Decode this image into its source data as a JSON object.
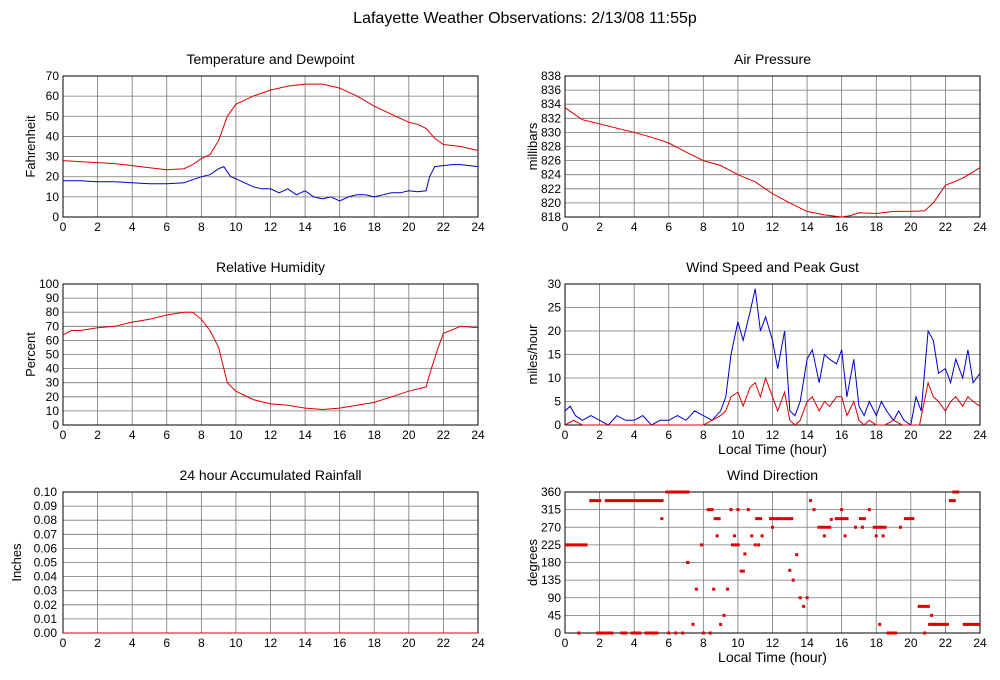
{
  "page_title": "Lafayette Weather Observations: 2/13/08 11:55p",
  "colors": {
    "red": "#dd0000",
    "blue": "#0000cc",
    "grid": "#777777"
  },
  "chart_data": [
    {
      "type": "line",
      "title": "Temperature and Dewpoint",
      "xlabel": "",
      "ylabel": "Fahrenheit",
      "xlim": [
        0,
        24
      ],
      "ylim": [
        0,
        70
      ],
      "xticks": [
        0,
        2,
        4,
        6,
        8,
        10,
        12,
        14,
        16,
        18,
        20,
        22,
        24
      ],
      "yticks": [
        0,
        10,
        20,
        30,
        40,
        50,
        60,
        70
      ],
      "grid": true,
      "series": [
        {
          "color": "#dd0000",
          "x": [
            0,
            1,
            2,
            3,
            4,
            5,
            6,
            7,
            7.5,
            8,
            8.5,
            9,
            9.5,
            10,
            10.5,
            11,
            12,
            13,
            14,
            15,
            16,
            17,
            18,
            19,
            20,
            20.5,
            21,
            21.5,
            22,
            23,
            24
          ],
          "y": [
            28,
            27.5,
            27,
            26.5,
            25.5,
            24.5,
            23.5,
            24,
            26,
            29,
            31,
            38,
            50,
            56,
            58,
            60,
            63,
            65,
            66,
            66,
            64,
            60,
            55,
            51,
            47,
            46,
            44,
            39,
            36,
            35,
            33
          ]
        },
        {
          "color": "#0000cc",
          "x": [
            0,
            1,
            2,
            3,
            4,
            5,
            6,
            7,
            7.5,
            8,
            8.5,
            9,
            9.3,
            9.7,
            10,
            10.5,
            11,
            11.5,
            12,
            12.5,
            13,
            13.5,
            14,
            14.5,
            15,
            15.5,
            16,
            16.5,
            17,
            17.5,
            18,
            18.5,
            19,
            19.5,
            20,
            20.5,
            21,
            21.2,
            21.5,
            22,
            22.5,
            23,
            23.5,
            24
          ],
          "y": [
            18,
            18,
            17.5,
            17.5,
            17,
            16.5,
            16.5,
            17,
            18.5,
            20,
            21,
            24,
            25,
            20,
            19,
            17,
            15,
            14,
            14,
            12,
            14,
            11,
            13,
            10,
            9,
            10,
            8,
            10,
            11,
            11,
            10,
            11,
            12,
            12,
            13,
            12.5,
            13,
            20,
            25,
            25.5,
            26,
            26,
            25.5,
            25
          ]
        }
      ]
    },
    {
      "type": "line",
      "title": "Air Pressure",
      "xlabel": "",
      "ylabel": "millibars",
      "xlim": [
        0,
        24
      ],
      "ylim": [
        818,
        838
      ],
      "xticks": [
        0,
        2,
        4,
        6,
        8,
        10,
        12,
        14,
        16,
        18,
        20,
        22,
        24
      ],
      "yticks": [
        818,
        820,
        822,
        824,
        826,
        828,
        830,
        832,
        834,
        836,
        838
      ],
      "grid": true,
      "series": [
        {
          "color": "#dd0000",
          "x": [
            0,
            1,
            2,
            3,
            4,
            5,
            6,
            7,
            8,
            9,
            10,
            11,
            12,
            13,
            14,
            15,
            16,
            16.5,
            17,
            18,
            19,
            20,
            20.8,
            21.3,
            22,
            23,
            24
          ],
          "y": [
            833.5,
            831.8,
            831.2,
            830.6,
            830,
            829.3,
            828.5,
            827.2,
            826,
            825.3,
            824,
            823,
            821.3,
            820,
            818.8,
            818.3,
            818,
            818.2,
            818.6,
            818.5,
            818.8,
            818.8,
            818.9,
            820,
            822.5,
            823.5,
            825
          ]
        }
      ]
    },
    {
      "type": "line",
      "title": "Relative Humidity",
      "xlabel": "",
      "ylabel": "Percent",
      "xlim": [
        0,
        24
      ],
      "ylim": [
        0,
        100
      ],
      "xticks": [
        0,
        2,
        4,
        6,
        8,
        10,
        12,
        14,
        16,
        18,
        20,
        22,
        24
      ],
      "yticks": [
        0,
        10,
        20,
        30,
        40,
        50,
        60,
        70,
        80,
        90,
        100
      ],
      "grid": true,
      "series": [
        {
          "color": "#dd0000",
          "x": [
            0,
            0.5,
            1,
            2,
            3,
            4,
            5,
            6,
            7,
            7.5,
            8,
            8.5,
            9,
            9.5,
            10,
            11,
            12,
            13,
            14,
            15,
            16,
            17,
            18,
            19,
            20,
            21,
            21.3,
            21.7,
            22,
            23,
            24
          ],
          "y": [
            64,
            67,
            67,
            69,
            70,
            73,
            75,
            78,
            80,
            80,
            75,
            67,
            55,
            30,
            24,
            18,
            15,
            14,
            12,
            11,
            12,
            14,
            16,
            20,
            24,
            27,
            40,
            55,
            65,
            70,
            69
          ]
        }
      ]
    },
    {
      "type": "line",
      "title": "Wind Speed and Peak Gust",
      "xlabel": "Local Time (hour)",
      "ylabel": "miles/hour",
      "xlim": [
        0,
        24
      ],
      "ylim": [
        0,
        30
      ],
      "xticks": [
        0,
        2,
        4,
        6,
        8,
        10,
        12,
        14,
        16,
        18,
        20,
        22,
        24
      ],
      "yticks": [
        0,
        5,
        10,
        15,
        20,
        25,
        30
      ],
      "grid": true,
      "series": [
        {
          "color": "#0000cc",
          "x": [
            0,
            0.3,
            0.6,
            1,
            1.5,
            2,
            2.5,
            3,
            3.5,
            4,
            4.5,
            5,
            5.5,
            6,
            6.5,
            7,
            7.5,
            8,
            8.5,
            9,
            9.3,
            9.6,
            10,
            10.3,
            10.7,
            11,
            11.3,
            11.6,
            12,
            12.3,
            12.7,
            13,
            13.3,
            13.6,
            14,
            14.3,
            14.7,
            15,
            15.3,
            15.7,
            16,
            16.3,
            16.7,
            17,
            17.3,
            17.6,
            18,
            18.3,
            18.6,
            19,
            19.3,
            19.6,
            20,
            20.3,
            20.6,
            21,
            21.3,
            21.6,
            22,
            22.3,
            22.6,
            23,
            23.3,
            23.6,
            24
          ],
          "y": [
            3,
            4,
            2,
            1,
            2,
            1,
            0,
            2,
            1,
            1,
            2,
            0,
            1,
            1,
            2,
            1,
            3,
            2,
            1,
            3,
            6,
            15,
            22,
            18,
            24,
            29,
            20,
            23,
            18,
            12,
            20,
            3,
            2,
            5,
            14,
            16,
            9,
            15,
            14,
            13,
            16,
            6,
            14,
            4,
            2,
            5,
            2,
            5,
            3,
            1,
            3,
            1,
            0,
            6,
            3,
            20,
            18,
            11,
            12,
            9,
            14,
            10,
            16,
            9,
            11
          ]
        },
        {
          "color": "#dd0000",
          "x": [
            0,
            0.5,
            1,
            1.5,
            2,
            3,
            4,
            5,
            6,
            7,
            8,
            8.5,
            9,
            9.3,
            9.6,
            10,
            10.3,
            10.7,
            11,
            11.3,
            11.6,
            12,
            12.3,
            12.7,
            13,
            13.3,
            13.6,
            14,
            14.3,
            14.7,
            15,
            15.3,
            15.7,
            16,
            16.3,
            16.7,
            17,
            17.3,
            17.6,
            18,
            18.5,
            19,
            19.5,
            20,
            20.5,
            21,
            21.3,
            21.6,
            22,
            22.3,
            22.6,
            23,
            23.3,
            23.6,
            24
          ],
          "y": [
            0,
            1,
            0,
            0,
            0,
            0,
            0,
            0,
            0,
            0,
            0,
            1,
            2,
            3,
            6,
            7,
            4,
            8,
            9,
            6,
            10,
            6,
            3,
            7,
            1,
            0,
            1,
            5,
            6,
            3,
            5,
            4,
            6,
            6,
            2,
            5,
            1,
            0,
            1,
            0,
            0,
            1,
            0,
            0,
            0,
            9,
            6,
            5,
            3,
            5,
            6,
            4,
            6,
            5,
            4
          ]
        }
      ]
    },
    {
      "type": "line",
      "title": "24 hour Accumulated Rainfall",
      "xlabel": "",
      "ylabel": "Inches",
      "xlim": [
        0,
        24
      ],
      "ylim": [
        0,
        0.1
      ],
      "xticks": [
        0,
        2,
        4,
        6,
        8,
        10,
        12,
        14,
        16,
        18,
        20,
        22,
        24
      ],
      "yticks": [
        "0.00",
        "0.01",
        "0.02",
        "0.03",
        "0.04",
        "0.05",
        "0.06",
        "0.07",
        "0.08",
        "0.09",
        "0.10"
      ],
      "grid": true,
      "series": [
        {
          "color": "#dd0000",
          "x": [
            0,
            24
          ],
          "y": [
            0,
            0
          ]
        }
      ]
    },
    {
      "type": "scatter",
      "title": "Wind Direction",
      "xlabel": "Local Time (hour)",
      "ylabel": "degrees",
      "xlim": [
        0,
        24
      ],
      "ylim": [
        0,
        360
      ],
      "xticks": [
        0,
        2,
        4,
        6,
        8,
        10,
        12,
        14,
        16,
        18,
        20,
        22,
        24
      ],
      "yticks": [
        0,
        45,
        90,
        135,
        180,
        225,
        270,
        315,
        360
      ],
      "grid": true,
      "series": [
        {
          "color": "#dd0000",
          "segments": [
            [
              0,
              1.3,
              225
            ],
            [
              1.4,
              2.1,
              338
            ],
            [
              2.3,
              5.7,
              338
            ],
            [
              5.8,
              7.2,
              360
            ],
            [
              7.0,
              7.2,
              180
            ],
            [
              7.8,
              8.0,
              225
            ],
            [
              8.2,
              8.6,
              315
            ],
            [
              8.6,
              9.0,
              292
            ],
            [
              9.6,
              10.1,
              225
            ],
            [
              10.1,
              10.4,
              158
            ],
            [
              11.0,
              11.4,
              292
            ],
            [
              11.8,
              12.6,
              292
            ],
            [
              12.6,
              13.2,
              292
            ],
            [
              14.6,
              15.4,
              270
            ],
            [
              15.6,
              16.4,
              292
            ],
            [
              17.0,
              17.4,
              292
            ],
            [
              17.8,
              18.6,
              270
            ],
            [
              19.6,
              20.2,
              292
            ],
            [
              20.4,
              21.1,
              68
            ],
            [
              21.0,
              22.2,
              22
            ],
            [
              22.2,
              22.6,
              338
            ],
            [
              22.4,
              22.8,
              360
            ],
            [
              23.0,
              24.0,
              22
            ],
            [
              1.8,
              2.8,
              0
            ],
            [
              3.2,
              3.6,
              0
            ],
            [
              3.8,
              4.4,
              0
            ],
            [
              4.6,
              5.4,
              0
            ],
            [
              18.6,
              19.2,
              0
            ]
          ],
          "points": [
            [
              0.8,
              0
            ],
            [
              5.6,
              292
            ],
            [
              6.0,
              0
            ],
            [
              6.4,
              0
            ],
            [
              6.8,
              0
            ],
            [
              7.4,
              22
            ],
            [
              7.6,
              112
            ],
            [
              8.0,
              0
            ],
            [
              8.4,
              0
            ],
            [
              8.6,
              112
            ],
            [
              8.8,
              248
            ],
            [
              9.0,
              22
            ],
            [
              9.2,
              45
            ],
            [
              9.4,
              112
            ],
            [
              9.6,
              315
            ],
            [
              9.8,
              248
            ],
            [
              10.0,
              315
            ],
            [
              10.4,
              202
            ],
            [
              10.6,
              315
            ],
            [
              10.8,
              248
            ],
            [
              11.0,
              225
            ],
            [
              11.2,
              225
            ],
            [
              11.4,
              248
            ],
            [
              12.0,
              270
            ],
            [
              13.0,
              160
            ],
            [
              13.2,
              135
            ],
            [
              13.4,
              200
            ],
            [
              13.6,
              90
            ],
            [
              13.8,
              68
            ],
            [
              14.0,
              90
            ],
            [
              14.2,
              338
            ],
            [
              14.4,
              315
            ],
            [
              15.0,
              248
            ],
            [
              15.4,
              290
            ],
            [
              16.0,
              315
            ],
            [
              16.2,
              248
            ],
            [
              16.8,
              270
            ],
            [
              17.2,
              270
            ],
            [
              17.6,
              315
            ],
            [
              18.0,
              248
            ],
            [
              18.2,
              22
            ],
            [
              18.4,
              248
            ],
            [
              18.8,
              0
            ],
            [
              19.0,
              0
            ],
            [
              19.4,
              270
            ],
            [
              20.8,
              0
            ],
            [
              21.2,
              45
            ],
            [
              21.4,
              22
            ]
          ]
        }
      ]
    }
  ]
}
